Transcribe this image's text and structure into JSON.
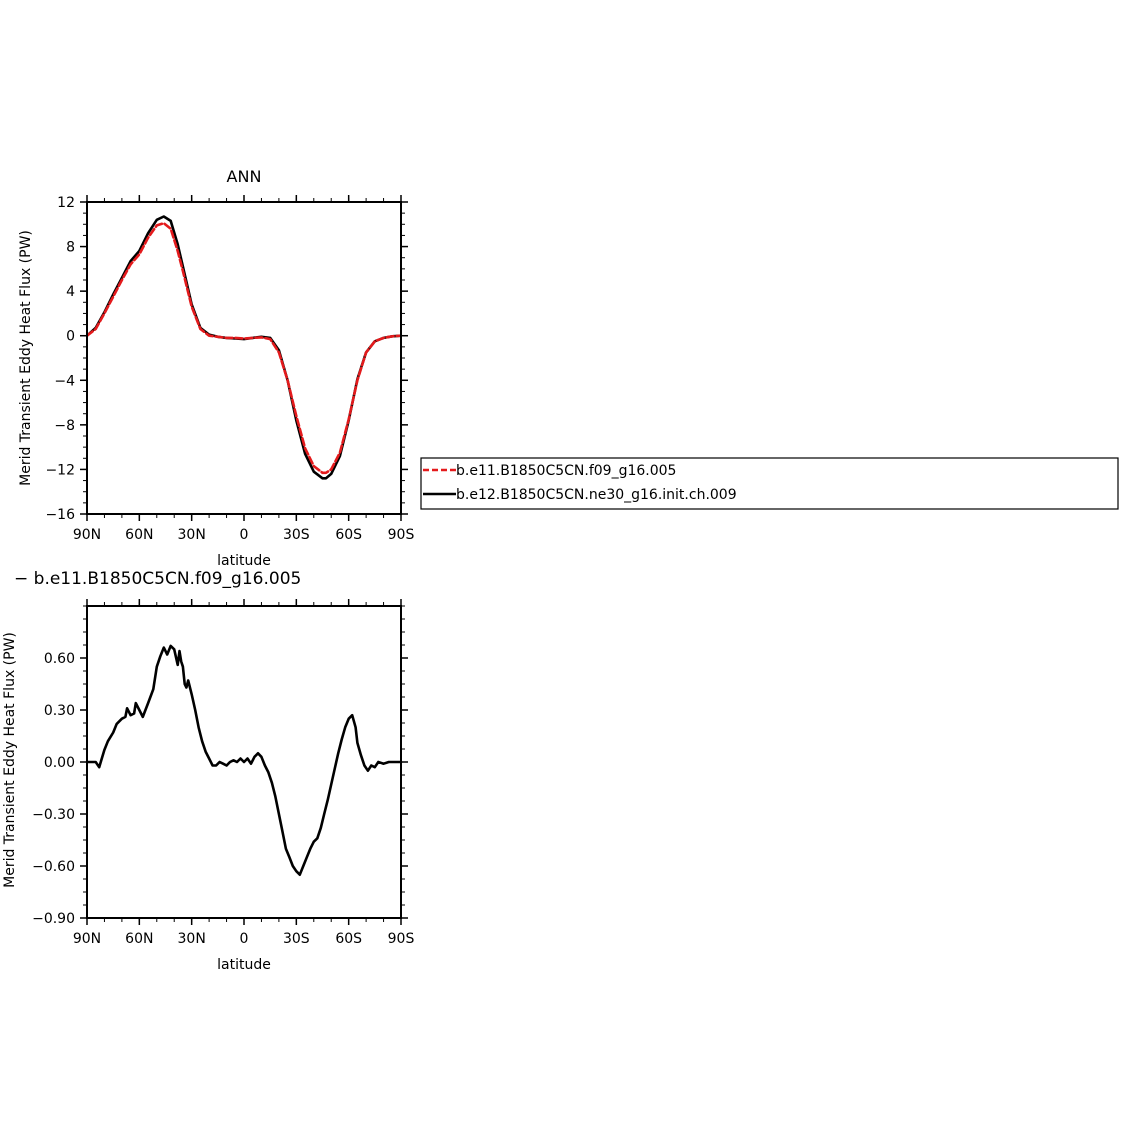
{
  "chart_data": [
    {
      "type": "line",
      "title": "ANN",
      "xlabel": "latitude",
      "ylabel": "Merid Transient Eddy Heat Flux (PW)",
      "xlim": [
        90,
        -90
      ],
      "ylim": [
        -16,
        12
      ],
      "x_ticks": [
        {
          "value": 90,
          "label": "90N"
        },
        {
          "value": 60,
          "label": "60N"
        },
        {
          "value": 30,
          "label": "30N"
        },
        {
          "value": 0,
          "label": "0"
        },
        {
          "value": -30,
          "label": "30S"
        },
        {
          "value": -60,
          "label": "60S"
        },
        {
          "value": -90,
          "label": "90S"
        }
      ],
      "y_ticks": [
        {
          "value": 12,
          "label": "12"
        },
        {
          "value": 8,
          "label": "8"
        },
        {
          "value": 4,
          "label": "4"
        },
        {
          "value": 0,
          "label": "0"
        },
        {
          "value": -4,
          "label": "−4"
        },
        {
          "value": -8,
          "label": "−8"
        },
        {
          "value": -12,
          "label": "−12"
        },
        {
          "value": -16,
          "label": "−16"
        }
      ],
      "legend_position": "right",
      "series": [
        {
          "name": "b.e11.B1850C5CN.f09_g16.005",
          "color": "#e41a1c",
          "dash": "dashed",
          "x": [
            90,
            85,
            80,
            75,
            70,
            65,
            60,
            55,
            50,
            46,
            42,
            38,
            35,
            30,
            25,
            20,
            15,
            10,
            5,
            0,
            -5,
            -10,
            -15,
            -20,
            -25,
            -30,
            -35,
            -40,
            -45,
            -47,
            -50,
            -55,
            -60,
            -65,
            -70,
            -75,
            -80,
            -85,
            -90
          ],
          "y": [
            0.0,
            0.6,
            2.0,
            3.5,
            5.0,
            6.4,
            7.3,
            8.8,
            9.9,
            10.1,
            9.6,
            7.6,
            5.8,
            2.6,
            0.6,
            0.0,
            -0.1,
            -0.2,
            -0.2,
            -0.25,
            -0.2,
            -0.15,
            -0.3,
            -1.5,
            -4.0,
            -7.2,
            -10.1,
            -11.7,
            -12.3,
            -12.3,
            -12.0,
            -10.5,
            -7.5,
            -4.0,
            -1.5,
            -0.5,
            -0.2,
            -0.05,
            0.0
          ]
        },
        {
          "name": "b.e12.B1850C5CN.ne30_g16.init.ch.009",
          "color": "#000000",
          "dash": "solid",
          "x": [
            90,
            85,
            80,
            75,
            70,
            65,
            60,
            55,
            50,
            46,
            42,
            38,
            35,
            30,
            25,
            20,
            15,
            10,
            5,
            0,
            -5,
            -10,
            -15,
            -20,
            -25,
            -30,
            -35,
            -40,
            -45,
            -47,
            -50,
            -55,
            -60,
            -65,
            -70,
            -75,
            -80,
            -85,
            -90
          ],
          "y": [
            0.0,
            0.7,
            2.1,
            3.7,
            5.2,
            6.7,
            7.6,
            9.2,
            10.4,
            10.7,
            10.3,
            8.2,
            6.2,
            2.8,
            0.7,
            0.1,
            -0.1,
            -0.2,
            -0.25,
            -0.3,
            -0.2,
            -0.1,
            -0.2,
            -1.3,
            -4.0,
            -7.6,
            -10.6,
            -12.2,
            -12.8,
            -12.8,
            -12.4,
            -10.8,
            -7.6,
            -3.9,
            -1.5,
            -0.5,
            -0.2,
            -0.05,
            0.0
          ]
        }
      ]
    },
    {
      "type": "line",
      "title": "− b.e11.B1850C5CN.f09_g16.005",
      "xlabel": "latitude",
      "ylabel": "Merid Transient Eddy Heat Flux (PW)",
      "xlim": [
        90,
        -90
      ],
      "ylim": [
        -0.9,
        0.9
      ],
      "x_ticks": [
        {
          "value": 90,
          "label": "90N"
        },
        {
          "value": 60,
          "label": "60N"
        },
        {
          "value": 30,
          "label": "30N"
        },
        {
          "value": 0,
          "label": "0"
        },
        {
          "value": -30,
          "label": "30S"
        },
        {
          "value": -60,
          "label": "60S"
        },
        {
          "value": -90,
          "label": "90S"
        }
      ],
      "y_ticks": [
        {
          "value": 0.6,
          "label": "0.60"
        },
        {
          "value": 0.3,
          "label": "0.30"
        },
        {
          "value": 0.0,
          "label": "0.00"
        },
        {
          "value": -0.3,
          "label": "−0.30"
        },
        {
          "value": -0.6,
          "label": "−0.60"
        },
        {
          "value": -0.9,
          "label": "−0.90"
        }
      ],
      "series": [
        {
          "color": "#000000",
          "dash": "solid",
          "x": [
            90,
            85,
            83,
            80,
            78,
            75,
            73,
            70,
            68,
            67,
            65,
            63,
            62,
            60,
            58,
            55,
            52,
            50,
            48,
            46,
            44,
            42,
            40,
            38,
            37,
            36,
            35,
            34,
            33,
            32,
            30,
            28,
            26,
            24,
            22,
            20,
            18,
            16,
            14,
            12,
            10,
            8,
            6,
            4,
            2,
            0,
            -2,
            -4,
            -6,
            -8,
            -10,
            -12,
            -14,
            -16,
            -18,
            -20,
            -22,
            -24,
            -26,
            -28,
            -30,
            -32,
            -34,
            -36,
            -38,
            -40,
            -42,
            -44,
            -46,
            -48,
            -50,
            -52,
            -54,
            -56,
            -58,
            -60,
            -62,
            -64,
            -65,
            -67,
            -69,
            -71,
            -73,
            -75,
            -77,
            -80,
            -83,
            -86,
            -90
          ],
          "y": [
            0.0,
            0.0,
            -0.03,
            0.07,
            0.12,
            0.17,
            0.22,
            0.25,
            0.26,
            0.31,
            0.27,
            0.28,
            0.34,
            0.3,
            0.26,
            0.34,
            0.42,
            0.55,
            0.61,
            0.66,
            0.62,
            0.67,
            0.65,
            0.56,
            0.64,
            0.58,
            0.55,
            0.45,
            0.43,
            0.47,
            0.39,
            0.3,
            0.2,
            0.12,
            0.06,
            0.02,
            -0.02,
            -0.02,
            0.0,
            -0.01,
            -0.02,
            0.0,
            0.01,
            0.0,
            0.02,
            0.0,
            0.02,
            -0.01,
            0.03,
            0.05,
            0.03,
            -0.02,
            -0.06,
            -0.12,
            -0.2,
            -0.3,
            -0.4,
            -0.5,
            -0.55,
            -0.6,
            -0.63,
            -0.65,
            -0.6,
            -0.55,
            -0.5,
            -0.46,
            -0.44,
            -0.38,
            -0.3,
            -0.22,
            -0.13,
            -0.04,
            0.05,
            0.13,
            0.2,
            0.25,
            0.27,
            0.2,
            0.11,
            0.04,
            -0.02,
            -0.05,
            -0.02,
            -0.03,
            0.0,
            -0.01,
            0.0,
            0.0,
            0.0
          ]
        }
      ]
    }
  ]
}
